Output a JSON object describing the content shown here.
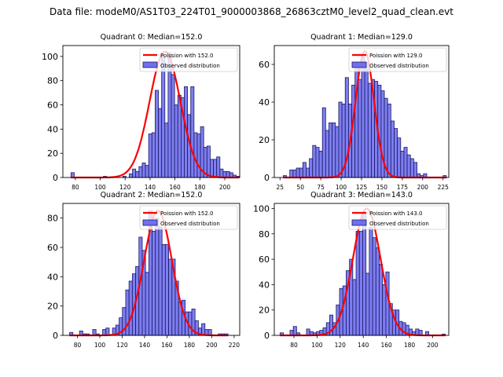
{
  "suptitle": "Data file: modeM0/AS1T03_224T01_9000003868_26863cztM0_level2_quad_clean.evt",
  "colors": {
    "bar_fill": "#7070ee",
    "bar_edge": "#1a1a66",
    "poisson_line": "#ff0000"
  },
  "chart_data": [
    {
      "type": "bar",
      "title": "Quadrant 0: Median=152.0",
      "legend": [
        "Poission with 152.0",
        "Observed distribution"
      ],
      "legend_position": "top-right",
      "xlim": [
        70,
        212
      ],
      "ylim": [
        0,
        109
      ],
      "xticks": [
        80,
        100,
        120,
        140,
        160,
        180,
        200
      ],
      "yticks": [
        0,
        20,
        40,
        60,
        80,
        100
      ],
      "bin_start": 76.5,
      "bin_width": 2.6,
      "values": [
        4,
        0,
        0,
        0,
        0,
        0,
        0,
        0,
        0,
        0,
        1,
        0,
        0,
        0,
        0,
        0,
        1,
        0,
        3,
        7,
        5,
        9,
        12,
        10,
        36,
        37,
        72,
        57,
        100,
        45,
        103,
        85,
        60,
        68,
        66,
        75,
        52,
        75,
        37,
        36,
        42,
        25,
        26,
        15,
        15,
        17,
        7,
        5,
        5,
        4,
        2,
        1
      ],
      "poisson_mean": 152.0,
      "poisson_peak": 104
    },
    {
      "type": "bar",
      "title": "Quadrant 1: Median=129.0",
      "legend": [
        "Poission with 129.0",
        "Observed distribution"
      ],
      "legend_position": "top-right",
      "xlim": [
        18,
        232
      ],
      "ylim": [
        0,
        70
      ],
      "xticks": [
        25,
        50,
        75,
        100,
        125,
        150,
        175,
        200,
        225
      ],
      "yticks": [
        0,
        20,
        40,
        60
      ],
      "bin_start": 29,
      "bin_width": 4.0,
      "values": [
        1,
        0,
        4,
        4,
        5,
        5,
        8,
        5,
        10,
        17,
        16,
        14,
        37,
        25,
        29,
        29,
        27,
        40,
        39,
        53,
        39,
        49,
        61,
        52,
        64,
        61,
        50,
        52,
        51,
        49,
        46,
        42,
        39,
        30,
        26,
        21,
        14,
        16,
        12,
        10,
        8,
        2,
        1,
        2,
        0,
        0,
        0,
        0,
        0,
        1
      ],
      "poisson_mean": 129.0,
      "poisson_peak": 67
    },
    {
      "type": "bar",
      "title": "Quadrant 2: Median=152.0",
      "legend": [
        "Poission with 152.0",
        "Observed distribution"
      ],
      "legend_position": "top-right",
      "xlim": [
        67,
        225
      ],
      "ylim": [
        0,
        90
      ],
      "xticks": [
        80,
        100,
        120,
        140,
        160,
        180,
        200,
        220
      ],
      "yticks": [
        0,
        20,
        40,
        60,
        80
      ],
      "bin_start": 73,
      "bin_width": 2.95,
      "values": [
        2,
        0,
        0,
        3,
        1,
        1,
        0,
        4,
        1,
        0,
        4,
        5,
        0,
        5,
        7,
        12,
        19,
        31,
        37,
        42,
        47,
        67,
        58,
        43,
        85,
        71,
        80,
        74,
        62,
        62,
        52,
        52,
        37,
        23,
        24,
        16,
        16,
        18,
        10,
        5,
        8,
        4,
        4,
        0,
        0,
        1,
        1,
        1
      ],
      "poisson_mean": 152.0,
      "poisson_peak": 85
    },
    {
      "type": "bar",
      "title": "Quadrant 3: Median=143.0",
      "legend": [
        "Poission with 143.0",
        "Observed distribution"
      ],
      "legend_position": "top-right",
      "xlim": [
        63,
        214
      ],
      "ylim": [
        0,
        104
      ],
      "xticks": [
        80,
        100,
        120,
        140,
        160,
        180,
        200
      ],
      "yticks": [
        0,
        20,
        40,
        60,
        80,
        100
      ],
      "bin_start": 68,
      "bin_width": 2.86,
      "values": [
        2,
        0,
        0,
        4,
        7,
        2,
        0,
        0,
        5,
        3,
        2,
        3,
        4,
        6,
        10,
        16,
        10,
        24,
        37,
        39,
        51,
        60,
        44,
        82,
        82,
        97,
        49,
        85,
        77,
        69,
        56,
        40,
        50,
        25,
        20,
        20,
        11,
        10,
        8,
        5,
        3,
        5,
        4,
        0,
        3,
        0,
        0,
        0,
        0,
        1
      ],
      "poisson_mean": 143.0,
      "poisson_peak": 100
    }
  ]
}
